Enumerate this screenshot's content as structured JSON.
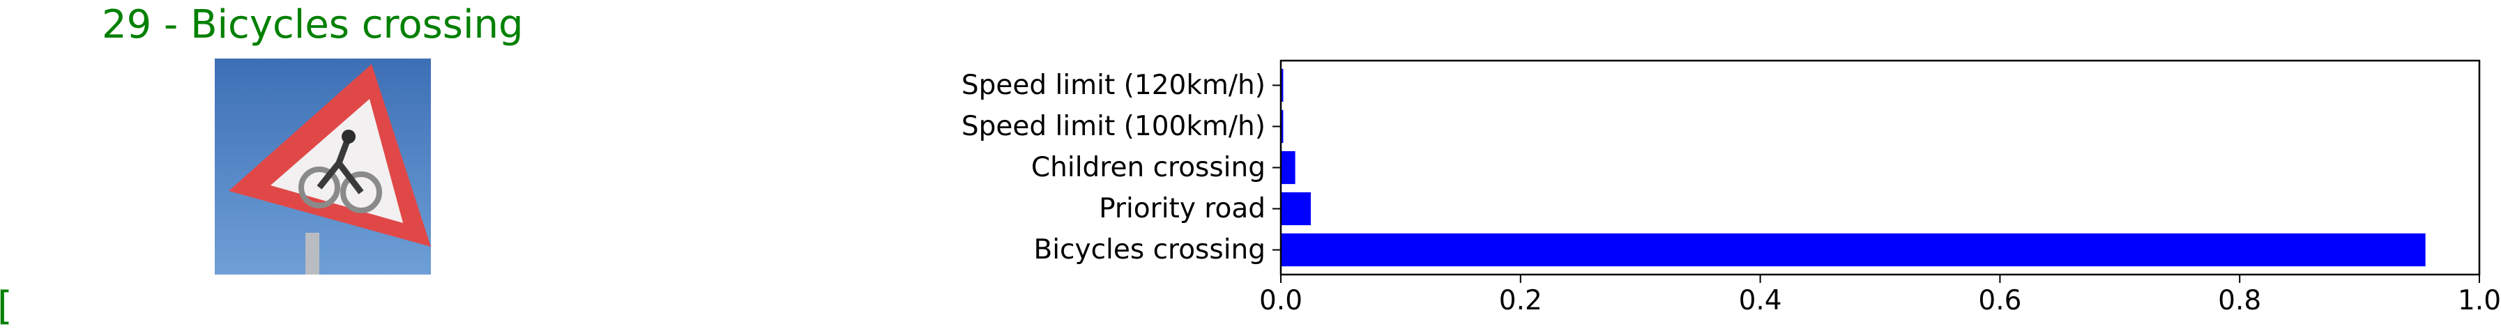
{
  "image_panel": {
    "title": "29 - Bicycles crossing",
    "stray_mark": "[",
    "title_color": "#008000"
  },
  "chart_data": {
    "type": "bar",
    "orientation": "horizontal",
    "categories": [
      "Speed limit (120km/h)",
      "Speed limit (100km/h)",
      "Children crossing",
      "Priority road",
      "Bicycles crossing"
    ],
    "values": [
      0.002,
      0.002,
      0.012,
      0.025,
      0.955
    ],
    "xlim": [
      0.0,
      1.0
    ],
    "xticks": [
      "0.0",
      "0.2",
      "0.4",
      "0.6",
      "0.8",
      "1.0"
    ],
    "bar_color": "#0000ff",
    "grid": false
  }
}
